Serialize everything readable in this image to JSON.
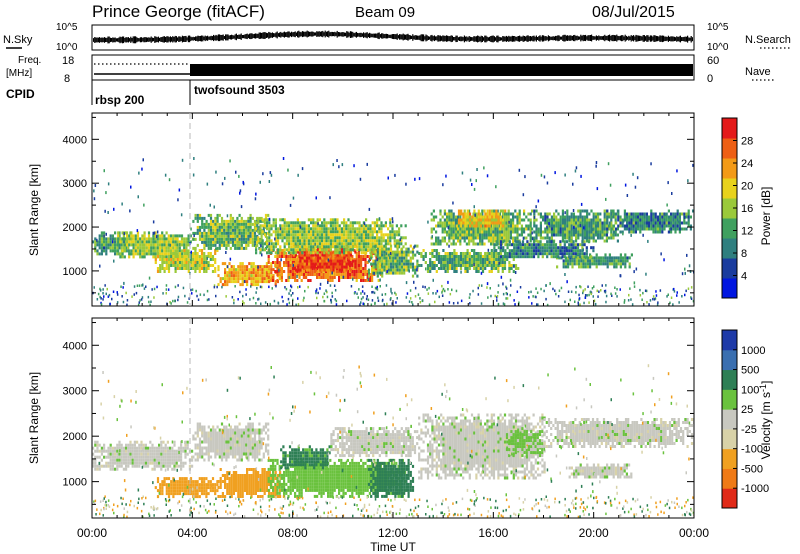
{
  "header": {
    "station": "Prince George (fitACF)",
    "beam": "Beam 09",
    "date": "08/Jul/2015"
  },
  "noise_panel": {
    "left_label": "N.Sky",
    "right_label": "N.Search",
    "left_ticks": [
      "10^5",
      "10^0"
    ],
    "right_ticks": [
      "10^5",
      "10^0"
    ]
  },
  "freq_panel": {
    "left_label_1": "Freq.",
    "left_label_2": "[MHz]",
    "right_label": "Nave",
    "left_ticks": [
      "18",
      "8"
    ],
    "right_ticks": [
      "60",
      "0"
    ]
  },
  "cpid": {
    "label": "CPID",
    "modes": [
      {
        "name": "rbsp 200",
        "start_hour": 0
      },
      {
        "name": "twofsound 3503",
        "start_hour": 4
      }
    ]
  },
  "time_axis": {
    "label": "Time UT",
    "ticks": [
      "00:00",
      "04:00",
      "08:00",
      "12:00",
      "16:00",
      "20:00",
      "00:00"
    ]
  },
  "colors": {
    "power_scale": [
      "#0016e0",
      "#1a3c9e",
      "#2f7f7f",
      "#3fa05f",
      "#9ac93a",
      "#e8d21c",
      "#f39a17",
      "#ee5f14",
      "#e41a1a"
    ],
    "velocity_scale": [
      "#1e3aa8",
      "#3a6fb0",
      "#2e7f55",
      "#6ac23e",
      "#c8c8c0",
      "#d8d2a8",
      "#f0a020",
      "#ef7a16",
      "#e02a18"
    ]
  },
  "chart_data": [
    {
      "type": "heatmap",
      "name": "power",
      "ylabel": "Slant Range [km]",
      "xlabel": "",
      "xlim_hours": [
        0,
        24
      ],
      "ylim_km": [
        200,
        4600
      ],
      "yticks": [
        "1000",
        "2000",
        "3000",
        "4000"
      ],
      "colorbar_label": "Power [dB]",
      "colorbar_ticks": [
        "28",
        "24",
        "20",
        "16",
        "12",
        "8",
        "4"
      ],
      "colorbar_range": [
        0,
        32
      ],
      "patches": [
        {
          "t0": 0.0,
          "t1": 1.5,
          "r0": 1400,
          "r1": 1900,
          "p": 12
        },
        {
          "t0": 1.0,
          "t1": 4.0,
          "r0": 1300,
          "r1": 1900,
          "p": 16
        },
        {
          "t0": 2.5,
          "t1": 5.0,
          "r0": 1000,
          "r1": 1500,
          "p": 18
        },
        {
          "t0": 4.0,
          "t1": 7.0,
          "r0": 1500,
          "r1": 2300,
          "p": 14
        },
        {
          "t0": 5.0,
          "t1": 7.5,
          "r0": 700,
          "r1": 1200,
          "p": 22
        },
        {
          "t0": 7.0,
          "t1": 11.5,
          "r0": 800,
          "r1": 1500,
          "p": 26
        },
        {
          "t0": 8.0,
          "t1": 10.5,
          "r0": 1000,
          "r1": 1600,
          "p": 28
        },
        {
          "t0": 6.5,
          "t1": 12.5,
          "r0": 1400,
          "r1": 2200,
          "p": 16
        },
        {
          "t0": 11.0,
          "t1": 13.0,
          "r0": 900,
          "r1": 1600,
          "p": 14
        },
        {
          "t0": 13.0,
          "t1": 17.0,
          "r0": 1000,
          "r1": 1500,
          "p": 14
        },
        {
          "t0": 13.5,
          "t1": 17.5,
          "r0": 1600,
          "r1": 2400,
          "p": 14
        },
        {
          "t0": 14.5,
          "t1": 16.5,
          "r0": 2000,
          "r1": 2400,
          "p": 20
        },
        {
          "t0": 17.5,
          "t1": 21.0,
          "r0": 1700,
          "r1": 2400,
          "p": 12
        },
        {
          "t0": 18.5,
          "t1": 21.5,
          "r0": 1100,
          "r1": 1400,
          "p": 12
        },
        {
          "t0": 20.5,
          "t1": 24.0,
          "r0": 1900,
          "r1": 2400,
          "p": 10
        },
        {
          "t0": 16.0,
          "t1": 20.0,
          "r0": 1300,
          "r1": 1700,
          "p": 10
        }
      ]
    },
    {
      "type": "heatmap",
      "name": "velocity",
      "ylabel": "Slant Range [km]",
      "xlabel": "Time UT",
      "xlim_hours": [
        0,
        24
      ],
      "ylim_km": [
        200,
        4600
      ],
      "yticks": [
        "1000",
        "2000",
        "3000",
        "4000"
      ],
      "colorbar_label": "Velocity [m s",
      "colorbar_label_sup": "-1",
      "colorbar_label_end": "]",
      "colorbar_ticks": [
        "1000",
        "500",
        "100",
        "25",
        "-25",
        "-100",
        "-500",
        "-1000"
      ],
      "patches": [
        {
          "t0": 0.0,
          "t1": 4.0,
          "r0": 1300,
          "r1": 1900,
          "v": 0
        },
        {
          "t0": 4.0,
          "t1": 7.0,
          "r0": 1500,
          "r1": 2300,
          "v": 0
        },
        {
          "t0": 2.5,
          "t1": 5.0,
          "r0": 700,
          "r1": 1100,
          "v": -200
        },
        {
          "t0": 5.0,
          "t1": 7.5,
          "r0": 700,
          "r1": 1300,
          "v": -180
        },
        {
          "t0": 7.0,
          "t1": 12.5,
          "r0": 700,
          "r1": 1500,
          "v": 60
        },
        {
          "t0": 7.5,
          "t1": 9.5,
          "r0": 1300,
          "r1": 1800,
          "v": 120
        },
        {
          "t0": 11.0,
          "t1": 12.8,
          "r0": 700,
          "r1": 1500,
          "v": 200
        },
        {
          "t0": 9.5,
          "t1": 13.0,
          "r0": 1600,
          "r1": 2200,
          "v": 0
        },
        {
          "t0": 13.0,
          "t1": 18.0,
          "r0": 1100,
          "r1": 2500,
          "v": 0
        },
        {
          "t0": 16.5,
          "t1": 18.0,
          "r0": 1600,
          "r1": 2200,
          "v": 40
        },
        {
          "t0": 18.0,
          "t1": 24.0,
          "r0": 1800,
          "r1": 2400,
          "v": 0
        },
        {
          "t0": 19.0,
          "t1": 21.5,
          "r0": 1100,
          "r1": 1400,
          "v": 0
        }
      ]
    }
  ]
}
